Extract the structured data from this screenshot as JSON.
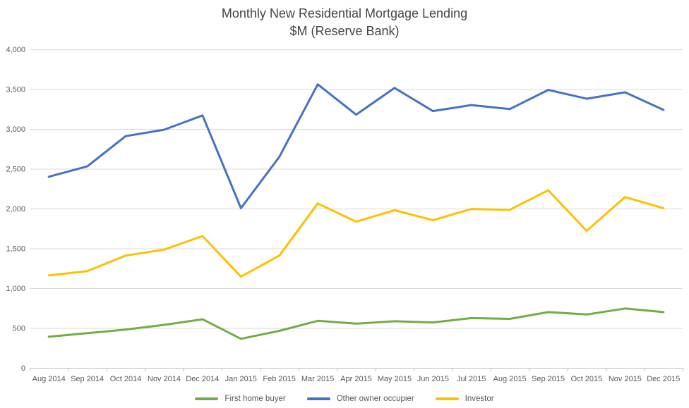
{
  "title": {
    "line1": "Monthly New Residential Mortgage Lending",
    "line2": "$M (Reserve Bank)"
  },
  "chart_data": {
    "type": "line",
    "categories": [
      "Aug 2014",
      "Sep 2014",
      "Oct 2014",
      "Nov 2014",
      "Dec 2014",
      "Jan 2015",
      "Feb 2015",
      "Mar 2015",
      "Apr 2015",
      "May 2015",
      "Jun 2015",
      "Jul 2015",
      "Aug 2015",
      "Sep 2015",
      "Oct 2015",
      "Nov 2015",
      "Dec 2015"
    ],
    "series": [
      {
        "name": "First home buyer",
        "color": "#70AD47",
        "values": [
          390,
          435,
          480,
          540,
          610,
          365,
          465,
          590,
          555,
          585,
          570,
          625,
          615,
          700,
          670,
          745,
          700
        ]
      },
      {
        "name": "Other owner occupier",
        "color": "#4472C4",
        "values": [
          2400,
          2530,
          2910,
          2990,
          3170,
          2005,
          2650,
          3560,
          3180,
          3515,
          3225,
          3300,
          3250,
          3490,
          3380,
          3460,
          3240
        ]
      },
      {
        "name": "Investor",
        "color": "#FFC000",
        "values": [
          1160,
          1215,
          1410,
          1485,
          1655,
          1145,
          1410,
          2065,
          1835,
          1980,
          1855,
          1995,
          1985,
          2230,
          1720,
          2145,
          2005
        ]
      }
    ],
    "ylim": [
      0,
      4000
    ],
    "ytick_step": 500,
    "grid": true,
    "legend_position": "bottom",
    "xlabel": "",
    "ylabel": ""
  },
  "style_colors": {
    "gridline": "#D9D9D9",
    "axis_line": "#BFBFBF",
    "tick_label": "#595959",
    "title_text": "#454545"
  }
}
